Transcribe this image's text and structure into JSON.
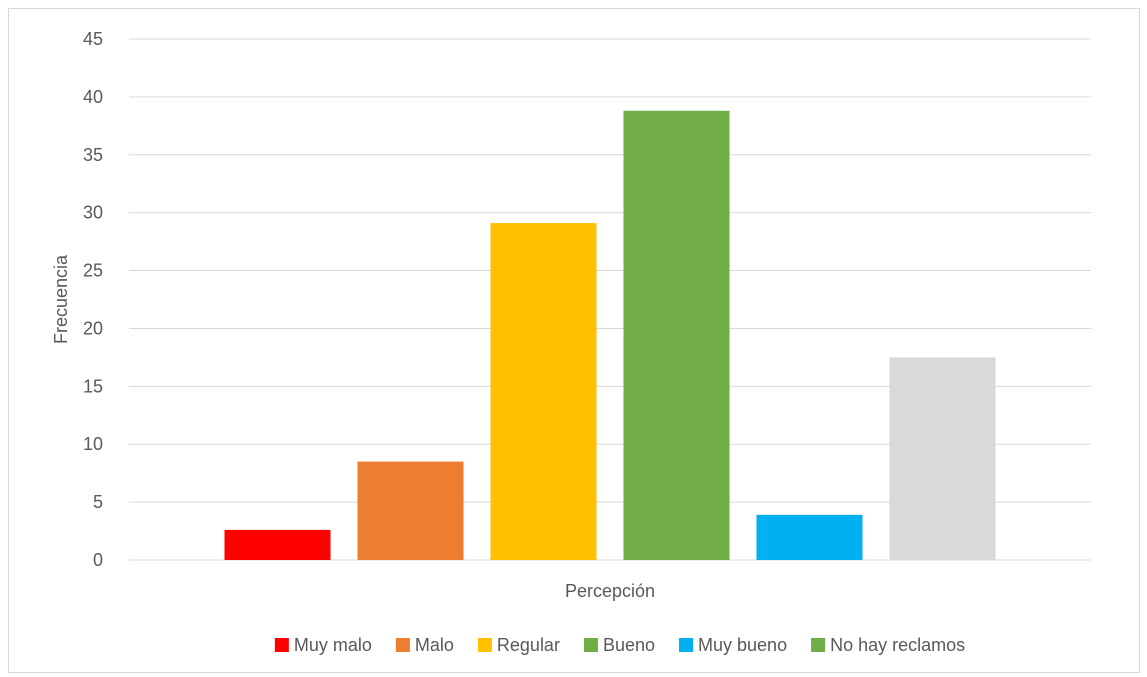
{
  "chart_data": {
    "type": "bar",
    "title": "",
    "xlabel": "Percepción",
    "ylabel": "Frecuencia",
    "ylim": [
      0,
      45
    ],
    "yticks": [
      0,
      5,
      10,
      15,
      20,
      25,
      30,
      35,
      40,
      45
    ],
    "grid": true,
    "legend_position": "bottom",
    "series": [
      {
        "name": "Muy malo",
        "values": [
          2.6
        ],
        "color": "#ff0000"
      },
      {
        "name": "Malo",
        "values": [
          8.5
        ],
        "color": "#ed7d31"
      },
      {
        "name": "Regular",
        "values": [
          29.1
        ],
        "color": "#ffc000"
      },
      {
        "name": "Bueno",
        "values": [
          38.8
        ],
        "color": "#70ad47"
      },
      {
        "name": "Muy bueno",
        "values": [
          3.9
        ],
        "color": "#00b0f0"
      },
      {
        "name": "No hay reclamos",
        "values": [
          17.5
        ],
        "color": "#d9d9d9",
        "legend_color": "#70ad47"
      }
    ]
  }
}
